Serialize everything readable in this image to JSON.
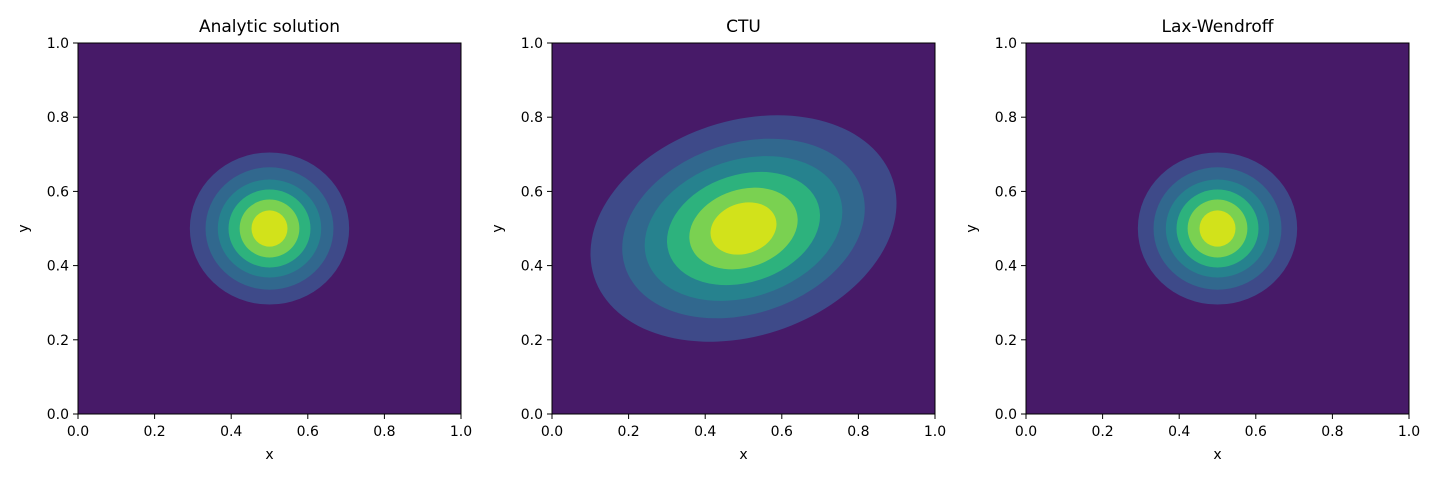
{
  "chart_data": [
    {
      "type": "contour",
      "title": "Analytic solution",
      "xlabel": "x",
      "ylabel": "y",
      "xlim": [
        0.0,
        1.0
      ],
      "ylim": [
        0.0,
        1.0
      ],
      "xticks": [
        "0.0",
        "0.2",
        "0.4",
        "0.6",
        "0.8",
        "1.0"
      ],
      "yticks": [
        "0.0",
        "0.2",
        "0.4",
        "0.6",
        "0.8",
        "1.0"
      ],
      "background_color": "#471a68",
      "levels": [
        {
          "level": 1,
          "color": "#3e4a89",
          "center": [
            0.5,
            0.5
          ],
          "radii": [
            0.208,
            0.205
          ],
          "rotation_deg": 0
        },
        {
          "level": 2,
          "color": "#31688e",
          "center": [
            0.5,
            0.5
          ],
          "radii": [
            0.167,
            0.165
          ],
          "rotation_deg": 0
        },
        {
          "level": 3,
          "color": "#26828e",
          "center": [
            0.5,
            0.5
          ],
          "radii": [
            0.135,
            0.132
          ],
          "rotation_deg": 0
        },
        {
          "level": 4,
          "color": "#2db27d",
          "center": [
            0.5,
            0.5
          ],
          "radii": [
            0.107,
            0.105
          ],
          "rotation_deg": 0
        },
        {
          "level": 5,
          "color": "#7ad151",
          "center": [
            0.5,
            0.5
          ],
          "radii": [
            0.078,
            0.078
          ],
          "rotation_deg": 0
        },
        {
          "level": 6,
          "color": "#d2e21b",
          "center": [
            0.5,
            0.5
          ],
          "radii": [
            0.047,
            0.049
          ],
          "rotation_deg": 0
        }
      ]
    },
    {
      "type": "contour",
      "title": "CTU",
      "xlabel": "x",
      "ylabel": "y",
      "xlim": [
        0.0,
        1.0
      ],
      "ylim": [
        0.0,
        1.0
      ],
      "xticks": [
        "0.0",
        "0.2",
        "0.4",
        "0.6",
        "0.8",
        "1.0"
      ],
      "yticks": [
        "0.0",
        "0.2",
        "0.4",
        "0.6",
        "0.8",
        "1.0"
      ],
      "background_color": "#471a68",
      "levels": [
        {
          "level": 1,
          "color": "#3e4a89",
          "center": [
            0.5,
            0.5
          ],
          "radii": [
            0.41,
            0.29
          ],
          "rotation_deg": -18
        },
        {
          "level": 2,
          "color": "#31688e",
          "center": [
            0.5,
            0.5
          ],
          "radii": [
            0.325,
            0.23
          ],
          "rotation_deg": -18
        },
        {
          "level": 3,
          "color": "#26828e",
          "center": [
            0.5,
            0.5
          ],
          "radii": [
            0.265,
            0.185
          ],
          "rotation_deg": -18
        },
        {
          "level": 4,
          "color": "#2db27d",
          "center": [
            0.5,
            0.5
          ],
          "radii": [
            0.205,
            0.145
          ],
          "rotation_deg": -18
        },
        {
          "level": 5,
          "color": "#7ad151",
          "center": [
            0.5,
            0.5
          ],
          "radii": [
            0.145,
            0.105
          ],
          "rotation_deg": -18
        },
        {
          "level": 6,
          "color": "#d2e21b",
          "center": [
            0.5,
            0.5
          ],
          "radii": [
            0.088,
            0.068
          ],
          "rotation_deg": -18
        }
      ]
    },
    {
      "type": "contour",
      "title": "Lax-Wendroff",
      "xlabel": "x",
      "ylabel": "y",
      "xlim": [
        0.0,
        1.0
      ],
      "ylim": [
        0.0,
        1.0
      ],
      "xticks": [
        "0.0",
        "0.2",
        "0.4",
        "0.6",
        "0.8",
        "1.0"
      ],
      "yticks": [
        "0.0",
        "0.2",
        "0.4",
        "0.6",
        "0.8",
        "1.0"
      ],
      "background_color": "#471a68",
      "levels": [
        {
          "level": 1,
          "color": "#3e4a89",
          "center": [
            0.5,
            0.5
          ],
          "radii": [
            0.208,
            0.205
          ],
          "rotation_deg": 0
        },
        {
          "level": 2,
          "color": "#31688e",
          "center": [
            0.5,
            0.5
          ],
          "radii": [
            0.167,
            0.165
          ],
          "rotation_deg": 0
        },
        {
          "level": 3,
          "color": "#26828e",
          "center": [
            0.5,
            0.5
          ],
          "radii": [
            0.135,
            0.132
          ],
          "rotation_deg": 0
        },
        {
          "level": 4,
          "color": "#2db27d",
          "center": [
            0.5,
            0.5
          ],
          "radii": [
            0.107,
            0.105
          ],
          "rotation_deg": 0
        },
        {
          "level": 5,
          "color": "#7ad151",
          "center": [
            0.5,
            0.5
          ],
          "radii": [
            0.078,
            0.078
          ],
          "rotation_deg": 0
        },
        {
          "level": 6,
          "color": "#d2e21b",
          "center": [
            0.5,
            0.5
          ],
          "radii": [
            0.047,
            0.049
          ],
          "rotation_deg": 0
        }
      ]
    }
  ]
}
